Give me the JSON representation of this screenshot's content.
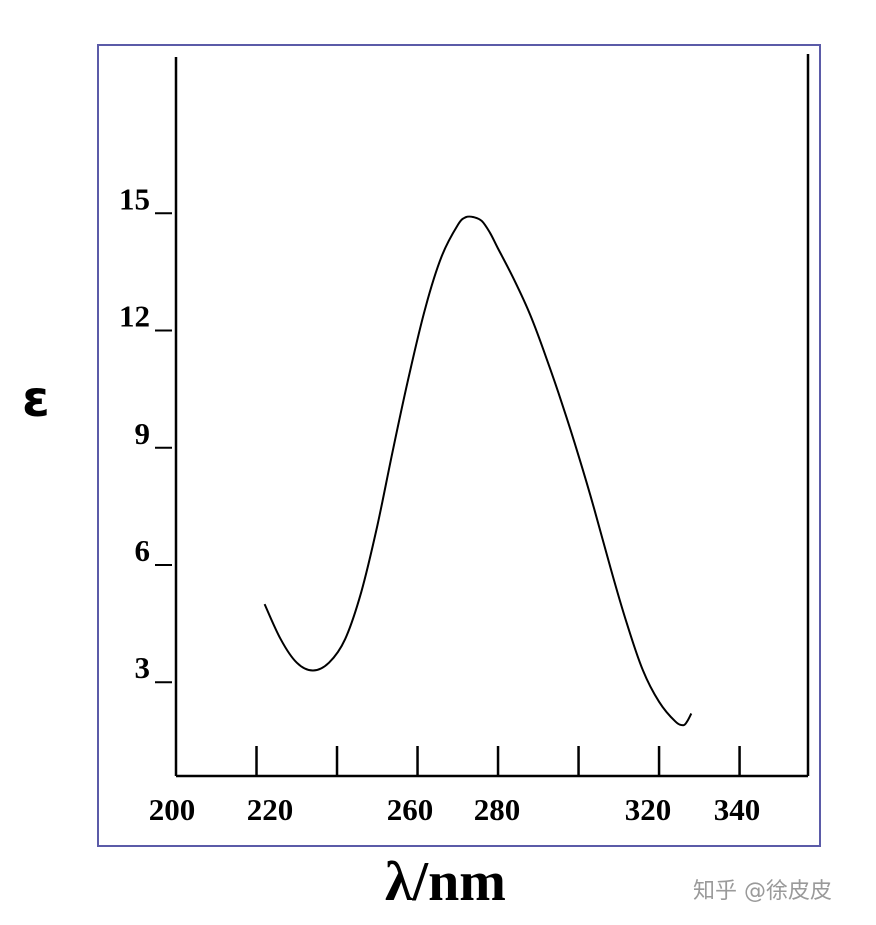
{
  "chart_data": {
    "type": "line",
    "title": "",
    "xlabel": "λ/nm",
    "ylabel": "ε",
    "x_tick_labels": [
      "200",
      "220",
      "260",
      "280",
      "320",
      "340"
    ],
    "y_tick_labels": [
      "3",
      "6",
      "9",
      "12",
      "15"
    ],
    "xlim": [
      200,
      357
    ],
    "ylim": [
      0.6,
      19
    ],
    "grid": false,
    "series": [
      {
        "x": [
          222,
          226,
          230,
          234,
          238,
          242,
          246,
          250,
          254,
          258,
          262,
          266,
          270,
          272,
          274,
          276,
          278,
          280,
          284,
          288,
          292,
          296,
          300,
          304,
          308,
          312,
          316,
          320,
          324,
          326,
          327,
          328
        ],
        "y": [
          5.0,
          4.1,
          3.5,
          3.3,
          3.5,
          4.1,
          5.3,
          7.0,
          9.0,
          10.9,
          12.6,
          13.9,
          14.7,
          14.9,
          14.9,
          14.8,
          14.5,
          14.1,
          13.3,
          12.4,
          11.3,
          10.1,
          8.8,
          7.4,
          5.9,
          4.5,
          3.3,
          2.5,
          2.0,
          1.9,
          2.0,
          2.2
        ]
      }
    ]
  },
  "watermark": "知乎 @徐皮皮",
  "colors": {
    "frame": "#5b5ba8",
    "axis": "#000000",
    "line": "#000000"
  }
}
